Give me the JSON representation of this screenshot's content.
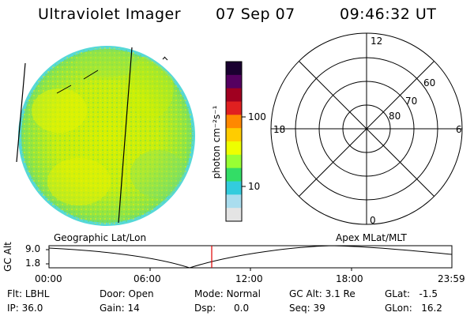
{
  "header": {
    "title": "Ultraviolet Imager",
    "date": "07 Sep 07",
    "time": "09:46:32 UT"
  },
  "colorbar": {
    "unit_label": "photon cm⁻²s⁻¹",
    "ticks": [
      "100",
      "10"
    ],
    "colors": [
      "#1a0030",
      "#550060",
      "#a00020",
      "#e02020",
      "#ff8800",
      "#ffcc00",
      "#eeff00",
      "#99ff33",
      "#33dd66",
      "#33ccdd",
      "#aaddee",
      "#e4e4e4"
    ]
  },
  "polar_grid": {
    "mlt_labels": {
      "top": "12",
      "left": "18",
      "right": "6",
      "bottom": "0"
    },
    "lat_labels": [
      "60",
      "70",
      "80"
    ]
  },
  "timeline": {
    "y_axis_label": "GC Alt",
    "y_ticks": [
      "9.0",
      "1.8"
    ],
    "left_caption": "Geographic Lat/Lon",
    "right_caption": "Apex MLat/MLT",
    "x_ticks": [
      "00:00",
      "06:00",
      "12:00",
      "18:00",
      "23:59"
    ],
    "current_time_marker_color": "#e00000"
  },
  "info": {
    "row1": [
      {
        "label": "Flt:",
        "value": "LBHL"
      },
      {
        "label": "Door:",
        "value": "Open"
      },
      {
        "label": "Mode:",
        "value": "Normal"
      },
      {
        "label": "GC Alt:",
        "value": "3.1 Re"
      },
      {
        "label": "GLat:",
        "value": "-1.5"
      }
    ],
    "row2": [
      {
        "label": "IP:",
        "value": "36.0"
      },
      {
        "label": "Gain:",
        "value": "14"
      },
      {
        "label": "Dsp:",
        "value": "0.0"
      },
      {
        "label": "Seq:",
        "value": "39"
      },
      {
        "label": "GLon:",
        "value": "16.2"
      }
    ]
  }
}
